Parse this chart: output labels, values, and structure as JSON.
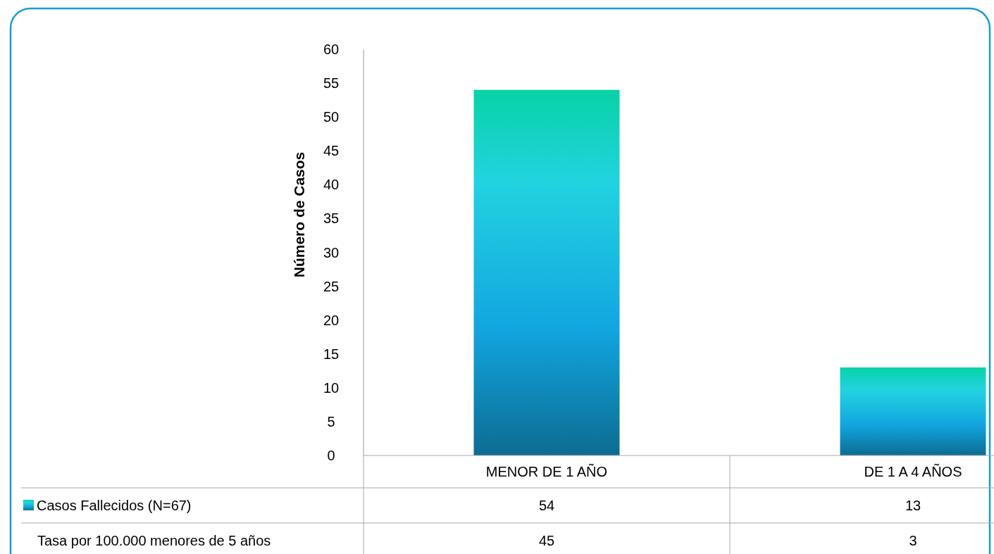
{
  "chart_data": {
    "type": "bar",
    "ylabel": "Número de Casos",
    "categories": [
      "MENOR DE 1 AÑO",
      "DE 1 A 4 AÑOS"
    ],
    "series": [
      {
        "name": "Casos Fallecidos (N=67)",
        "color": "#12a6e0",
        "values": [
          54,
          13
        ]
      }
    ],
    "ylim": [
      0,
      60
    ],
    "yticks": [
      0,
      5,
      10,
      15,
      20,
      25,
      30,
      35,
      40,
      45,
      50,
      55,
      60
    ],
    "grid": false,
    "legend": "bottom left",
    "data_labels": true,
    "annotations": [
      "Tasa por 100.000 menores de 5 años",
      "45",
      "3"
    ]
  }
}
